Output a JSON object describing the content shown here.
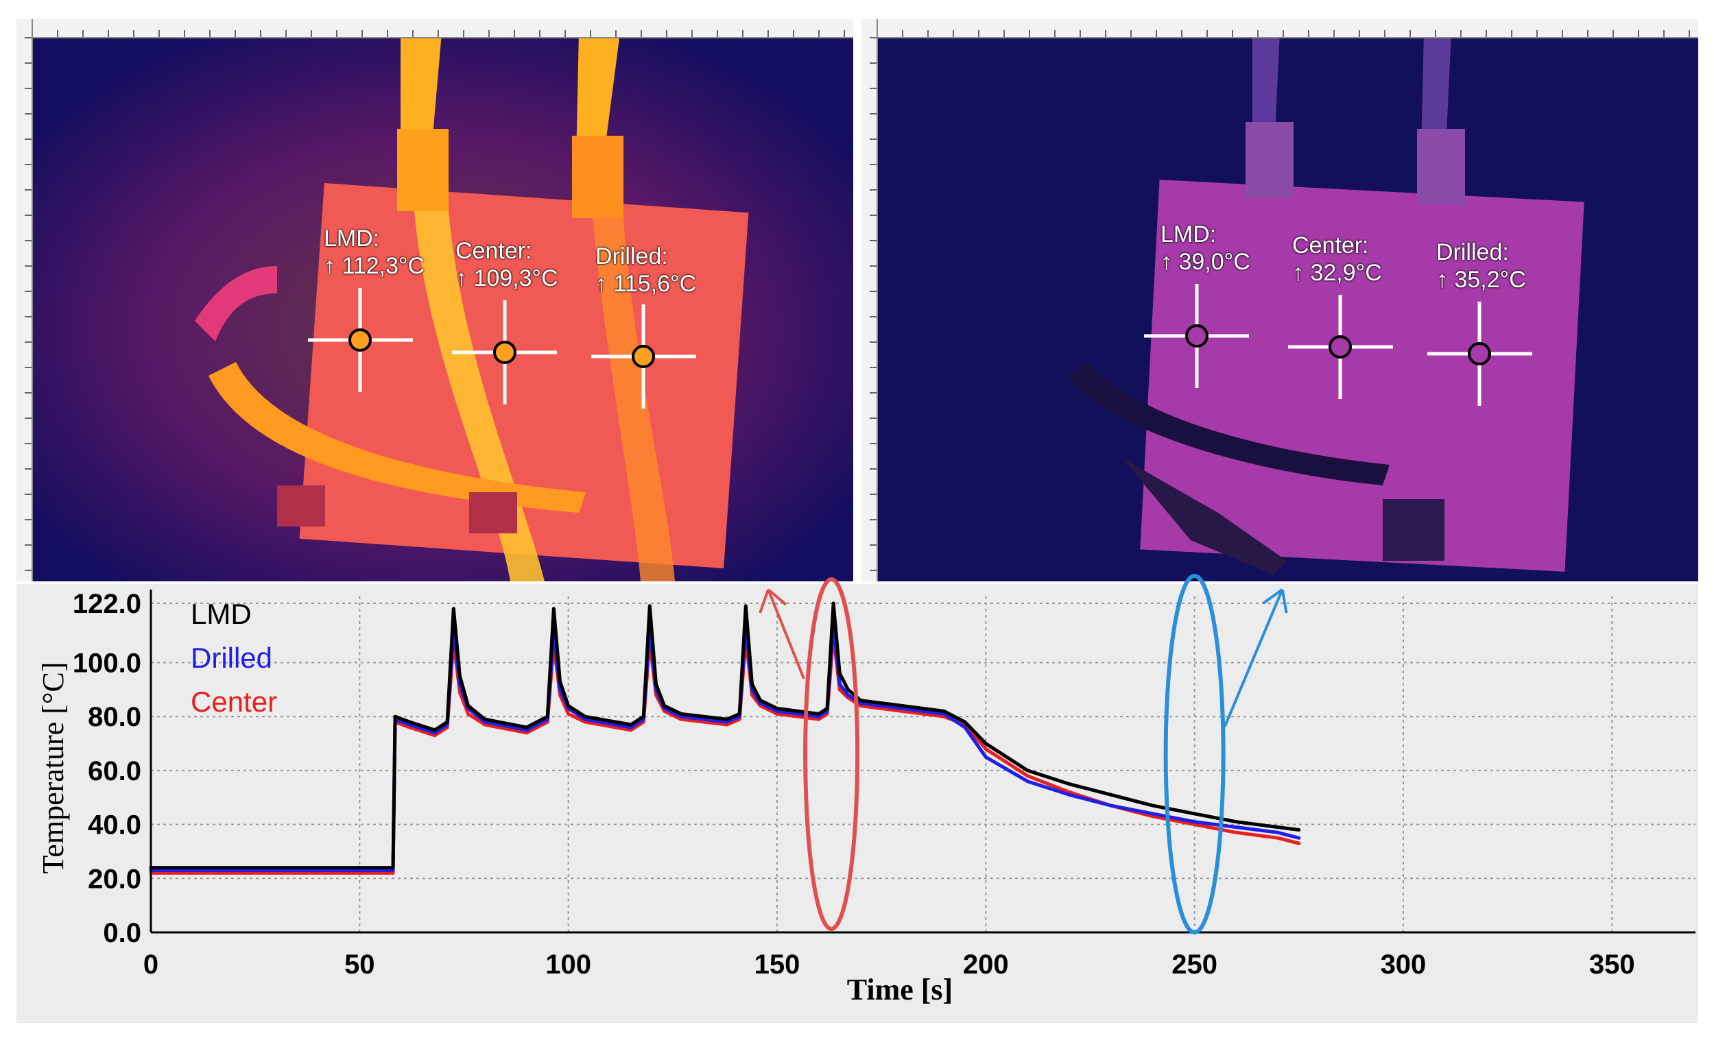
{
  "thermal_images": {
    "left": {
      "spots": [
        {
          "name": "LMD:",
          "value": "↑ 112,3°C"
        },
        {
          "name": "Center:",
          "value": "↑ 109,3°C"
        },
        {
          "name": "Drilled:",
          "value": "↑ 115,6°C"
        }
      ]
    },
    "right": {
      "spots": [
        {
          "name": "LMD:",
          "value": "↑ 39,0°C"
        },
        {
          "name": "Center:",
          "value": "↑ 32,9°C"
        },
        {
          "name": "Drilled:",
          "value": "↑ 35,2°C"
        }
      ]
    }
  },
  "chart_data": {
    "type": "line",
    "xlabel": "Time [s]",
    "ylabel": "Temperature [°C]",
    "xlim": [
      0,
      370
    ],
    "ylim": [
      0,
      122
    ],
    "xticks": [
      0,
      50,
      100,
      150,
      200,
      250,
      300,
      350
    ],
    "yticks": [
      "122.0",
      "100.0",
      "80.0",
      "60.0",
      "40.0",
      "20.0",
      "0.0"
    ],
    "ytick_values": [
      122,
      100,
      80,
      60,
      40,
      20,
      0
    ],
    "grid": true,
    "legend_position": "top-left",
    "series": [
      {
        "name": "LMD",
        "color": "#000000",
        "x": [
          0,
          58,
          58.5,
          62,
          68,
          71,
          72.5,
          74,
          76,
          80,
          90,
          95,
          96.5,
          98,
          100,
          104,
          115,
          118,
          119.5,
          121,
          123,
          127,
          138,
          141,
          142.5,
          144,
          146,
          150,
          160,
          162,
          163.5,
          165,
          167,
          170,
          180,
          190,
          195,
          200,
          210,
          220,
          230,
          240,
          250,
          260,
          270,
          275
        ],
        "y": [
          24,
          24,
          80,
          78,
          75,
          78,
          120,
          95,
          84,
          79,
          76,
          80,
          120,
          93,
          84,
          80,
          77,
          80,
          121,
          92,
          84,
          81,
          79,
          81,
          121,
          92,
          86,
          83,
          81,
          83,
          122,
          96,
          90,
          86,
          84,
          82,
          78,
          70,
          60,
          55,
          51,
          47,
          44,
          41,
          39,
          38
        ]
      },
      {
        "name": "Drilled",
        "color": "#1f1fe6",
        "x": [
          0,
          58,
          58.5,
          62,
          68,
          71,
          72.5,
          74,
          76,
          80,
          90,
          95,
          96.5,
          98,
          100,
          104,
          115,
          118,
          119.5,
          121,
          123,
          127,
          138,
          141,
          142.5,
          144,
          146,
          150,
          160,
          162,
          163.5,
          165,
          167,
          170,
          180,
          190,
          195,
          200,
          210,
          220,
          230,
          240,
          250,
          260,
          270,
          275
        ],
        "y": [
          23,
          23,
          79,
          77,
          74,
          77,
          113,
          92,
          83,
          78,
          75,
          79,
          112,
          90,
          83,
          79,
          76,
          79,
          113,
          90,
          83,
          80,
          78,
          80,
          114,
          90,
          85,
          82,
          80,
          82,
          115,
          92,
          88,
          85,
          83,
          81,
          76,
          65,
          56,
          51,
          47,
          44,
          41,
          39,
          37,
          35
        ]
      },
      {
        "name": "Center",
        "color": "#e82020",
        "x": [
          0,
          58,
          58.5,
          62,
          68,
          71,
          72.5,
          74,
          76,
          80,
          90,
          95,
          96.5,
          98,
          100,
          104,
          115,
          118,
          119.5,
          121,
          123,
          127,
          138,
          141,
          142.5,
          144,
          146,
          150,
          160,
          162,
          163.5,
          165,
          167,
          170,
          180,
          190,
          195,
          200,
          210,
          220,
          230,
          240,
          250,
          260,
          270,
          275
        ],
        "y": [
          22,
          22,
          78,
          76,
          73,
          76,
          108,
          89,
          81,
          77,
          74,
          78,
          107,
          88,
          81,
          78,
          75,
          78,
          108,
          88,
          82,
          79,
          77,
          79,
          109,
          88,
          84,
          81,
          79,
          81,
          110,
          90,
          87,
          84,
          82,
          80,
          77,
          68,
          58,
          52,
          47,
          43,
          40,
          37,
          35,
          33
        ]
      }
    ],
    "annotations": [
      {
        "type": "ellipse",
        "color": "#e05050",
        "x": 163
      },
      {
        "type": "ellipse",
        "color": "#2a8fd8",
        "x": 250
      }
    ]
  }
}
